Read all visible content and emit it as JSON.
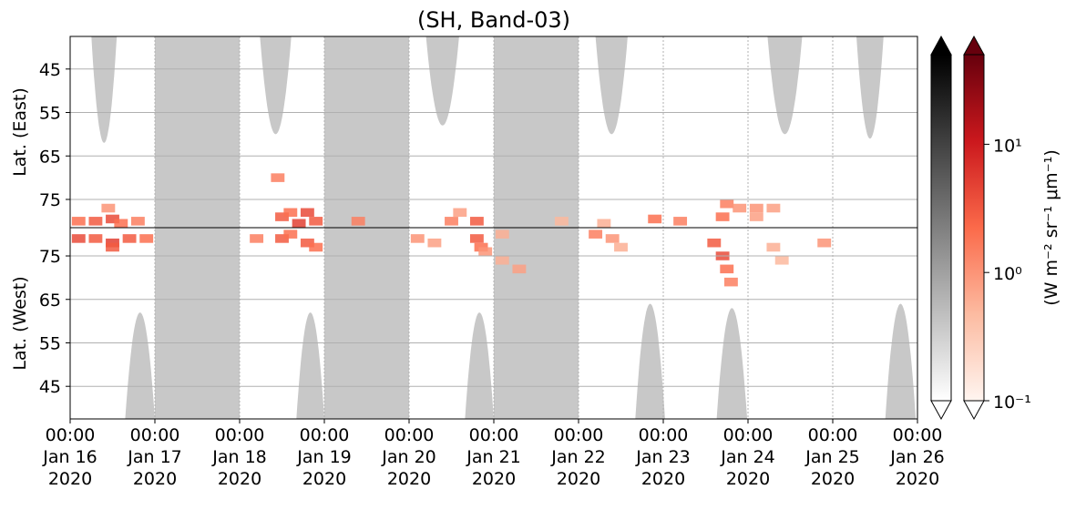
{
  "chart_data": {
    "type": "heatmap",
    "title": "(SH, Band-03)",
    "ylabel_east": "Lat. (East)",
    "ylabel_west": "Lat. (West)",
    "colorbar_label": "(W m⁻² sr⁻¹ μm⁻¹)",
    "xlim": [
      0,
      10
    ],
    "xticks": [
      {
        "value": 0,
        "label": "00:00\nJan 16\n2020"
      },
      {
        "value": 1,
        "label": "00:00\nJan 17\n2020"
      },
      {
        "value": 2,
        "label": "00:00\nJan 18\n2020"
      },
      {
        "value": 3,
        "label": "00:00\nJan 19\n2020"
      },
      {
        "value": 4,
        "label": "00:00\nJan 20\n2020"
      },
      {
        "value": 5,
        "label": "00:00\nJan 21\n2020"
      },
      {
        "value": 6,
        "label": "00:00\nJan 22\n2020"
      },
      {
        "value": 7,
        "label": "00:00\nJan 23\n2020"
      },
      {
        "value": 8,
        "label": "00:00\nJan 24\n2020"
      },
      {
        "value": 9,
        "label": "00:00\nJan 25\n2020"
      },
      {
        "value": 10,
        "label": "00:00\nJan 26\n2020"
      }
    ],
    "ylim": [
      37.5,
      81.5
    ],
    "yticks": [
      45,
      55,
      65,
      75
    ],
    "grid": true,
    "clim": [
      0.1,
      50
    ],
    "log_scale": true,
    "cticks": [
      {
        "value": 0.1,
        "label": "10⁻¹"
      },
      {
        "value": 1,
        "label": "10⁰"
      },
      {
        "value": 10,
        "label": "10¹"
      }
    ],
    "colormap": [
      "#fff5f0",
      "#fcbba1",
      "#fb6a4a",
      "#cb181d",
      "#67000d"
    ],
    "gray_colormap": [
      "#ffffff",
      "#000000"
    ],
    "night_color": "#c8c8c8",
    "shade": {
      "start": [
        1,
        3,
        5
      ],
      "end": [
        2,
        4,
        6
      ]
    },
    "arcs_east": {
      "start": [
        0.25,
        2.24,
        4.2,
        6.2,
        8.23,
        9.28
      ],
      "end": [
        0.55,
        2.61,
        4.59,
        6.58,
        8.64,
        9.6
      ],
      "lat": [
        62,
        60,
        58,
        60,
        60,
        61
      ]
    },
    "arcs_west": {
      "start": [
        0.65,
        2.67,
        4.66,
        6.67,
        7.63,
        9.62
      ],
      "end": [
        1.0,
        3.0,
        5.0,
        7.02,
        7.99,
        9.98
      ],
      "lat": [
        62,
        62,
        62,
        64,
        63,
        64
      ]
    },
    "patches_east": {
      "x": [
        0.1,
        0.3,
        0.5,
        0.6,
        0.8,
        0.45,
        2.5,
        2.6,
        2.8,
        2.9,
        2.7,
        2.45,
        4.5,
        4.8,
        4.6,
        3.4,
        6.9,
        7.2,
        7.7,
        7.75,
        7.9,
        8.1,
        8.3,
        8.1,
        6.3,
        5.8
      ],
      "lat": [
        80,
        80,
        79.5,
        80.5,
        80,
        77,
        79,
        78,
        78,
        80,
        80.5,
        70,
        80,
        80,
        78,
        80,
        79.5,
        80,
        79,
        76,
        77,
        77,
        77,
        79,
        80.5,
        80
      ],
      "values": [
        2,
        3,
        4,
        2,
        1.5,
        1,
        3,
        2,
        4,
        3,
        5,
        1.5,
        1.5,
        3,
        0.8,
        1.5,
        2,
        1.5,
        2,
        1.5,
        1,
        1,
        0.8,
        0.8,
        0.6,
        0.5
      ]
    },
    "patches_west": {
      "x": [
        0.1,
        0.3,
        0.5,
        0.7,
        0.9,
        0.5,
        2.2,
        2.5,
        2.8,
        2.9,
        2.6,
        4.1,
        4.3,
        4.8,
        4.85,
        4.9,
        5.1,
        5.3,
        5.1,
        6.2,
        6.4,
        6.5,
        7.6,
        7.7,
        7.75,
        7.8,
        8.3,
        8.9,
        8.4
      ],
      "lat": [
        79,
        79,
        78,
        79,
        79,
        77,
        79,
        79,
        78,
        77,
        80,
        79,
        78,
        79,
        77,
        76,
        74,
        72,
        80,
        80,
        79,
        77,
        78,
        75,
        72,
        69,
        77,
        78,
        74
      ],
      "values": [
        4,
        3,
        5,
        3,
        2,
        3,
        1.5,
        3,
        3,
        2,
        2,
        1,
        0.8,
        3,
        2,
        1,
        0.6,
        0.8,
        0.6,
        1.5,
        1,
        0.6,
        3,
        4,
        2,
        1.5,
        0.6,
        1,
        0.5
      ]
    }
  }
}
